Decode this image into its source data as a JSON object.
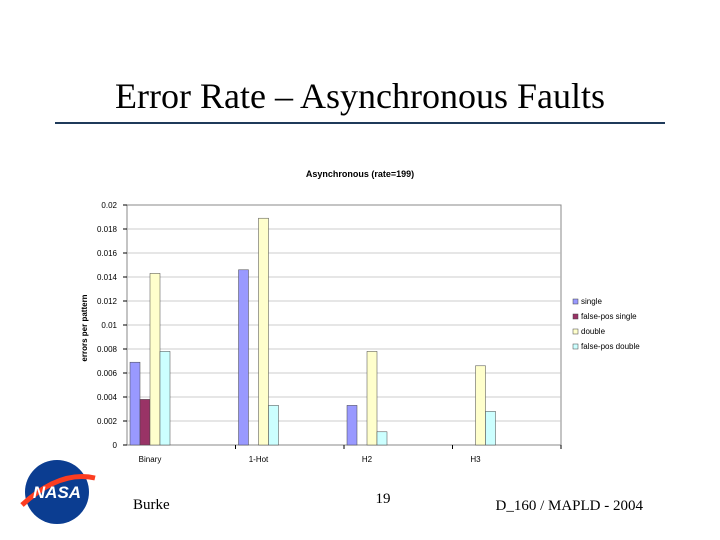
{
  "slide": {
    "title": "Error Rate – Asynchronous Faults",
    "logo": "NASA",
    "author": "Burke",
    "page": "19",
    "footer": "D_160 / MAPLD - 2004"
  },
  "chart_data": {
    "type": "bar",
    "title": "Asynchronous (rate=199)",
    "y_label": "errors per pattern",
    "categories": [
      "Binary",
      "1-Hot",
      "H2",
      "H3"
    ],
    "series": [
      {
        "name": "single",
        "color": "#9999ff",
        "values": [
          0.0069,
          0.0146,
          0.0033,
          0
        ]
      },
      {
        "name": "false-pos single",
        "color": "#993366",
        "values": [
          0.0038,
          0,
          0,
          0
        ]
      },
      {
        "name": "double",
        "color": "#ffffcc",
        "values": [
          0.0143,
          0.0189,
          0.0078,
          0.0066
        ]
      },
      {
        "name": "false-pos double",
        "color": "#ccffff",
        "values": [
          0.0078,
          0.0033,
          0.0011,
          0.0028
        ]
      }
    ],
    "ylim": [
      0,
      0.02
    ],
    "yticks": [
      0,
      0.002,
      0.004,
      0.006,
      0.008,
      0.01,
      0.012,
      0.014,
      0.016,
      0.018,
      0.02
    ],
    "grid": true,
    "legend": "right"
  }
}
